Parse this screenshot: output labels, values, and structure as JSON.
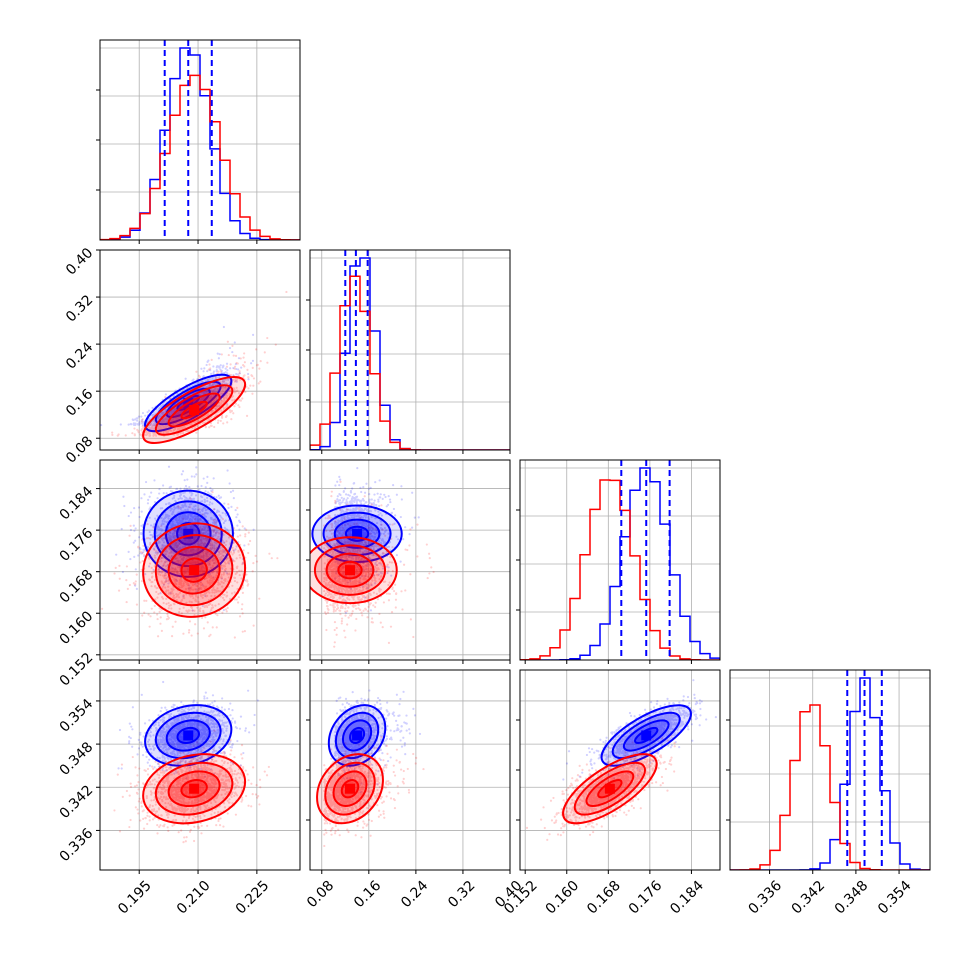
{
  "chart_data": {
    "type": "corner",
    "parameters": [
      {
        "id": "p0",
        "range": [
          0.185,
          0.236
        ],
        "ticks": [
          "0.195",
          "0.210",
          "0.225"
        ],
        "tick_values": [
          0.195,
          0.21,
          0.225
        ]
      },
      {
        "id": "p1",
        "range": [
          0.06,
          0.4
        ],
        "ticks": [
          "0.08",
          "0.16",
          "0.24",
          "0.32",
          "0.40"
        ],
        "tick_values": [
          0.08,
          0.16,
          0.24,
          0.32,
          0.4
        ]
      },
      {
        "id": "p2",
        "range": [
          0.151,
          0.1895
        ],
        "ticks": [
          "0.152",
          "0.160",
          "0.168",
          "0.176",
          "0.184"
        ],
        "tick_values": [
          0.152,
          0.16,
          0.168,
          0.176,
          0.184
        ]
      },
      {
        "id": "p3",
        "range": [
          0.3305,
          0.3583
        ],
        "ticks": [
          "0.336",
          "0.342",
          "0.348",
          "0.354"
        ],
        "tick_values": [
          0.336,
          0.342,
          0.348,
          0.354
        ]
      }
    ],
    "series": [
      {
        "color": "#0000ff",
        "means": [
          0.2075,
          0.14,
          0.1753,
          0.3492
        ],
        "sigmas": [
          0.0055,
          0.024,
          0.0043,
          0.0021
        ],
        "correlations": [
          {
            "pair": [
              0,
              1
            ],
            "rho": 0.78
          },
          {
            "pair": [
              0,
              2
            ],
            "rho": 0.0
          },
          {
            "pair": [
              1,
              2
            ],
            "rho": 0.0
          },
          {
            "pair": [
              0,
              3
            ],
            "rho": 0.2
          },
          {
            "pair": [
              1,
              3
            ],
            "rho": 0.25
          },
          {
            "pair": [
              2,
              3
            ],
            "rho": 0.72
          }
        ],
        "quantiles": [
          [
            0.2015,
            0.2075,
            0.2135
          ],
          [
            0.12,
            0.138,
            0.158
          ],
          [
            0.1705,
            0.1753,
            0.1798
          ],
          [
            0.3468,
            0.3492,
            0.3516
          ]
        ]
      },
      {
        "color": "#ff0000",
        "means": [
          0.209,
          0.128,
          0.1683,
          0.3418
        ],
        "sigmas": [
          0.0065,
          0.028,
          0.0045,
          0.0024
        ],
        "correlations": [
          {
            "pair": [
              0,
              1
            ],
            "rho": 0.78
          },
          {
            "pair": [
              0,
              2
            ],
            "rho": 0.05
          },
          {
            "pair": [
              1,
              2
            ],
            "rho": 0.0
          },
          {
            "pair": [
              0,
              3
            ],
            "rho": 0.2
          },
          {
            "pair": [
              1,
              3
            ],
            "rho": 0.25
          },
          {
            "pair": [
              2,
              3
            ],
            "rho": 0.72
          }
        ]
      }
    ],
    "histogram_bins": 20,
    "contour_levels_sigma": [
      0.5,
      1.0,
      1.5,
      2.0
    ],
    "quantile_lines": "dashed, blue series",
    "grid": true
  }
}
